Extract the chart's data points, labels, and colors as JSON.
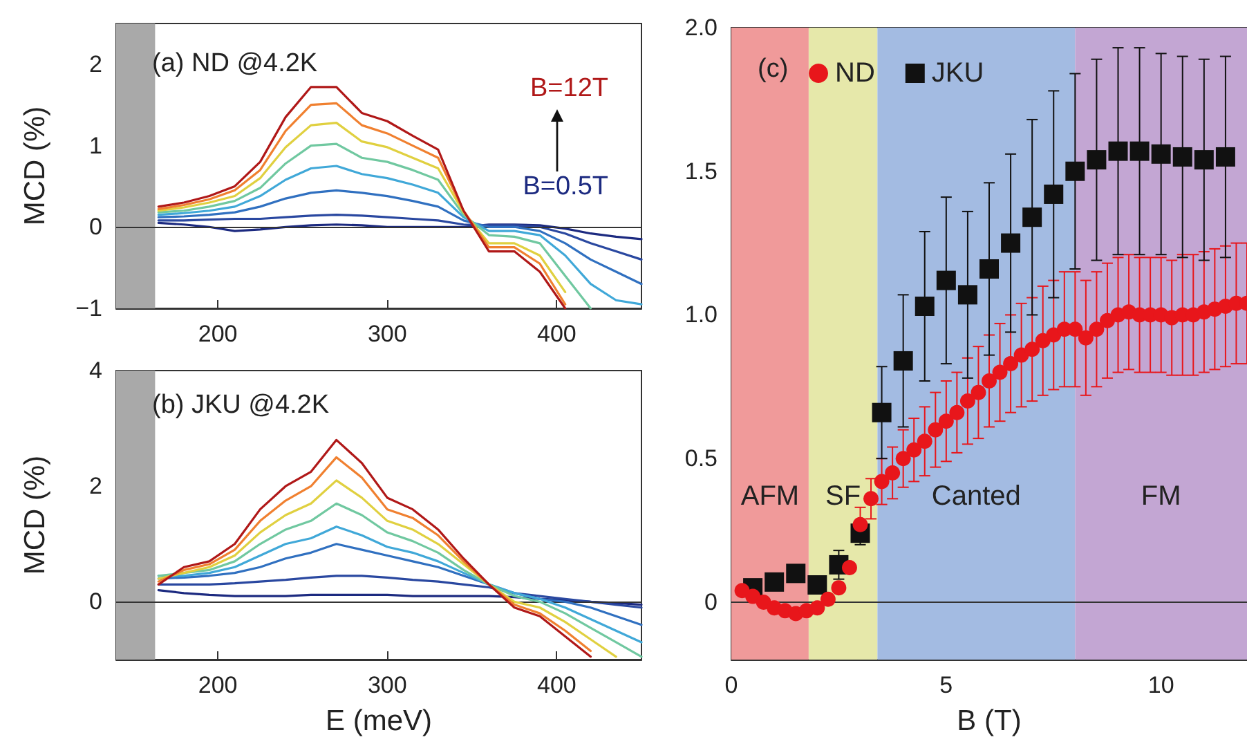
{
  "chart_data": [
    {
      "type": "line",
      "ylabel": "MCD (%)",
      "annotations": [
        "(a) ND @4.2K",
        "B=12T",
        "B=0.5T"
      ],
      "marker": "none",
      "x": [
        165,
        180,
        195,
        210,
        225,
        240,
        255,
        270,
        285,
        300,
        315,
        330,
        345,
        360,
        375,
        390,
        405,
        420,
        435,
        450
      ],
      "xlim": [
        140,
        450
      ],
      "xticks": [
        200,
        300,
        400
      ],
      "ylim": [
        -1,
        2.5
      ],
      "yticks": [
        {
          "value": -1,
          "label": "−1"
        },
        0,
        1,
        2
      ],
      "bands": [
        {
          "axis": "x",
          "from": 140,
          "to": 163,
          "color": "#a9a9a9"
        }
      ],
      "ref_lines": [
        {
          "axis": "y",
          "value": 0,
          "color": "#333333"
        }
      ],
      "series": [
        {
          "color": "#1c2a80",
          "values": [
            0.05,
            0.03,
            0.0,
            -0.05,
            -0.03,
            0.0,
            0.02,
            0.03,
            0.02,
            0.0,
            0.0,
            0.0,
            0.0,
            0.03,
            0.03,
            0.02,
            -0.02,
            -0.08,
            -0.12,
            -0.15
          ]
        },
        {
          "color": "#2a48a0",
          "values": [
            0.08,
            0.08,
            0.09,
            0.1,
            0.1,
            0.12,
            0.14,
            0.15,
            0.14,
            0.12,
            0.1,
            0.08,
            0.03,
            0.02,
            0.02,
            0.0,
            -0.08,
            -0.2,
            -0.3,
            -0.4
          ]
        },
        {
          "color": "#3070c0",
          "values": [
            0.12,
            0.13,
            0.15,
            0.18,
            0.25,
            0.35,
            0.42,
            0.45,
            0.42,
            0.38,
            0.32,
            0.25,
            0.08,
            0.0,
            0.0,
            -0.05,
            -0.2,
            -0.4,
            -0.55,
            -0.7
          ]
        },
        {
          "color": "#40a8d8",
          "values": [
            0.15,
            0.17,
            0.2,
            0.25,
            0.38,
            0.58,
            0.72,
            0.75,
            0.65,
            0.6,
            0.52,
            0.42,
            0.12,
            -0.05,
            -0.05,
            -0.1,
            -0.35,
            -0.7,
            -0.9,
            -0.95
          ]
        },
        {
          "color": "#70c8a0",
          "values": [
            0.18,
            0.2,
            0.25,
            0.32,
            0.48,
            0.78,
            1.0,
            1.02,
            0.85,
            0.8,
            0.7,
            0.58,
            0.15,
            -0.1,
            -0.12,
            -0.2,
            -0.6,
            -1.0,
            null,
            null
          ]
        },
        {
          "color": "#e0d040",
          "values": [
            0.2,
            0.24,
            0.3,
            0.38,
            0.6,
            0.98,
            1.25,
            1.28,
            1.05,
            0.98,
            0.85,
            0.72,
            0.18,
            -0.2,
            -0.2,
            -0.35,
            -0.8,
            null,
            null,
            null
          ]
        },
        {
          "color": "#f08030",
          "values": [
            0.22,
            0.27,
            0.34,
            0.45,
            0.7,
            1.18,
            1.5,
            1.52,
            1.25,
            1.15,
            1.0,
            0.85,
            0.2,
            -0.25,
            -0.25,
            -0.45,
            -0.95,
            null,
            null,
            null
          ]
        },
        {
          "color": "#b01818",
          "values": [
            0.25,
            0.3,
            0.38,
            0.5,
            0.8,
            1.35,
            1.72,
            1.72,
            1.4,
            1.3,
            1.12,
            0.95,
            0.2,
            -0.3,
            -0.3,
            -0.55,
            -1.0,
            null,
            null,
            null
          ]
        }
      ]
    },
    {
      "type": "line",
      "xlabel": "E (meV)",
      "ylabel": "MCD (%)",
      "annotations": [
        "(b) JKU @4.2K"
      ],
      "marker": "none",
      "x": [
        165,
        180,
        195,
        210,
        225,
        240,
        255,
        270,
        285,
        300,
        315,
        330,
        345,
        360,
        375,
        390,
        405,
        420,
        435,
        450
      ],
      "xlim": [
        140,
        450
      ],
      "xticks": [
        200,
        300,
        400
      ],
      "ylim": [
        -1,
        4
      ],
      "yticks": [
        0,
        2,
        4
      ],
      "bands": [
        {
          "axis": "x",
          "from": 140,
          "to": 163,
          "color": "#a9a9a9"
        }
      ],
      "ref_lines": [
        {
          "axis": "y",
          "value": 0,
          "color": "#333333"
        }
      ],
      "series": [
        {
          "color": "#1c2a80",
          "values": [
            0.2,
            0.15,
            0.12,
            0.1,
            0.1,
            0.1,
            0.12,
            0.12,
            0.12,
            0.12,
            0.1,
            0.1,
            0.1,
            0.1,
            0.08,
            0.05,
            0.03,
            0.0,
            -0.02,
            -0.05
          ]
        },
        {
          "color": "#2a48a0",
          "values": [
            0.3,
            0.3,
            0.3,
            0.32,
            0.35,
            0.38,
            0.42,
            0.45,
            0.45,
            0.42,
            0.38,
            0.35,
            0.3,
            0.25,
            0.15,
            0.1,
            0.05,
            0.0,
            -0.05,
            -0.1
          ]
        },
        {
          "color": "#3070c0",
          "values": [
            0.4,
            0.42,
            0.45,
            0.5,
            0.6,
            0.75,
            0.85,
            1.0,
            0.9,
            0.8,
            0.7,
            0.6,
            0.45,
            0.3,
            0.15,
            0.05,
            0.0,
            -0.1,
            -0.25,
            -0.4
          ]
        },
        {
          "color": "#40a8d8",
          "values": [
            0.45,
            0.45,
            0.5,
            0.6,
            0.8,
            1.0,
            1.1,
            1.3,
            1.15,
            0.95,
            0.85,
            0.7,
            0.5,
            0.3,
            0.15,
            0.05,
            -0.1,
            -0.3,
            -0.5,
            -0.7
          ]
        },
        {
          "color": "#70c8a0",
          "values": [
            0.45,
            0.5,
            0.55,
            0.7,
            1.0,
            1.25,
            1.4,
            1.7,
            1.5,
            1.2,
            1.05,
            0.85,
            0.55,
            0.3,
            0.1,
            0.0,
            -0.2,
            -0.45,
            -0.7,
            -0.95
          ]
        },
        {
          "color": "#e0d040",
          "values": [
            0.4,
            0.5,
            0.6,
            0.8,
            1.2,
            1.5,
            1.7,
            2.1,
            1.8,
            1.4,
            1.25,
            1.0,
            0.65,
            0.3,
            0.0,
            -0.1,
            -0.35,
            -0.65,
            -0.95,
            null
          ]
        },
        {
          "color": "#f08030",
          "values": [
            0.35,
            0.55,
            0.65,
            0.9,
            1.4,
            1.75,
            2.0,
            2.5,
            2.15,
            1.6,
            1.45,
            1.15,
            0.7,
            0.3,
            -0.05,
            -0.2,
            -0.5,
            -0.85,
            null,
            null
          ]
        },
        {
          "color": "#b01818",
          "values": [
            0.3,
            0.6,
            0.7,
            1.0,
            1.6,
            2.0,
            2.25,
            2.8,
            2.4,
            1.8,
            1.6,
            1.25,
            0.75,
            0.3,
            -0.1,
            -0.25,
            -0.6,
            -0.95,
            null,
            null
          ]
        }
      ]
    },
    {
      "type": "scatter",
      "xlabel": "B (T)",
      "annotations": [
        "(c)"
      ],
      "legend": "top left",
      "xlim": [
        0,
        12
      ],
      "xticks": [
        0,
        5,
        10
      ],
      "ylim": [
        -0.2,
        2.0
      ],
      "yticks": [
        0,
        0.5,
        {
          "value": 1,
          "label": "1.0"
        },
        1.5,
        {
          "value": 2,
          "label": "2.0"
        }
      ],
      "bands": [
        {
          "axis": "x",
          "from": 0,
          "to": 1.8,
          "label": "AFM",
          "color": "#f09a9a"
        },
        {
          "axis": "x",
          "from": 1.8,
          "to": 3.4,
          "label": "SF",
          "color": "#e6e8aa"
        },
        {
          "axis": "x",
          "from": 3.4,
          "to": 8,
          "label": "Canted",
          "color": "#a3bbe2"
        },
        {
          "axis": "x",
          "from": 8,
          "to": 12,
          "label": "FM",
          "color": "#c3a6d3"
        }
      ],
      "ref_lines": [
        {
          "axis": "y",
          "value": 0,
          "color": "#333333"
        }
      ],
      "series": [
        {
          "name": "ND",
          "color": "#e8161b",
          "marker": "circle",
          "x": [
            0.25,
            0.5,
            0.75,
            1,
            1.25,
            1.5,
            1.75,
            2,
            2.25,
            2.5,
            2.75,
            3,
            3.25,
            3.5,
            3.75,
            4,
            4.25,
            4.5,
            4.75,
            5,
            5.25,
            5.5,
            5.75,
            6,
            6.25,
            6.5,
            6.75,
            7,
            7.25,
            7.5,
            7.75,
            8,
            8.25,
            8.5,
            8.75,
            9,
            9.25,
            9.5,
            9.75,
            10,
            10.25,
            10.5,
            10.75,
            11,
            11.25,
            11.5,
            11.75,
            12
          ],
          "values": [
            0.04,
            0.02,
            0.0,
            -0.02,
            -0.03,
            -0.04,
            -0.03,
            -0.02,
            0.01,
            0.05,
            0.12,
            0.27,
            0.36,
            0.42,
            0.45,
            0.5,
            0.53,
            0.56,
            0.6,
            0.63,
            0.66,
            0.7,
            0.73,
            0.77,
            0.8,
            0.83,
            0.86,
            0.88,
            0.91,
            0.93,
            0.95,
            0.95,
            0.92,
            0.95,
            0.98,
            1.0,
            1.01,
            1.0,
            1.0,
            1.0,
            0.99,
            1.0,
            1.0,
            1.01,
            1.02,
            1.03,
            1.04,
            1.04
          ],
          "errors": [
            null,
            null,
            null,
            null,
            null,
            null,
            null,
            null,
            null,
            null,
            null,
            0.06,
            0.07,
            0.08,
            0.09,
            0.1,
            0.11,
            0.12,
            0.13,
            0.14,
            0.14,
            0.15,
            0.16,
            0.16,
            0.17,
            0.17,
            0.18,
            0.18,
            0.19,
            0.19,
            0.2,
            0.2,
            0.2,
            0.2,
            0.2,
            0.2,
            0.2,
            0.2,
            0.2,
            0.2,
            0.2,
            0.21,
            0.21,
            0.21,
            0.21,
            0.21,
            0.21,
            0.21
          ]
        },
        {
          "name": "JKU",
          "color": "#111111",
          "marker": "square",
          "x": [
            0.5,
            1,
            1.5,
            2,
            2.5,
            3,
            3.5,
            4,
            4.5,
            5,
            5.5,
            6,
            6.5,
            7,
            7.5,
            8,
            8.5,
            9,
            9.5,
            10,
            10.5,
            11,
            11.5
          ],
          "values": [
            0.05,
            0.07,
            0.1,
            0.06,
            0.13,
            0.24,
            0.66,
            0.84,
            1.03,
            1.12,
            1.07,
            1.16,
            1.25,
            1.34,
            1.42,
            1.5,
            1.54,
            1.57,
            1.57,
            1.56,
            1.55,
            1.54,
            1.55
          ],
          "errors": [
            null,
            null,
            null,
            null,
            0.05,
            0.04,
            0.16,
            0.23,
            0.26,
            0.29,
            0.29,
            0.3,
            0.31,
            0.34,
            0.36,
            0.34,
            0.35,
            0.36,
            0.36,
            0.35,
            0.35,
            0.35,
            0.35
          ]
        }
      ]
    }
  ]
}
